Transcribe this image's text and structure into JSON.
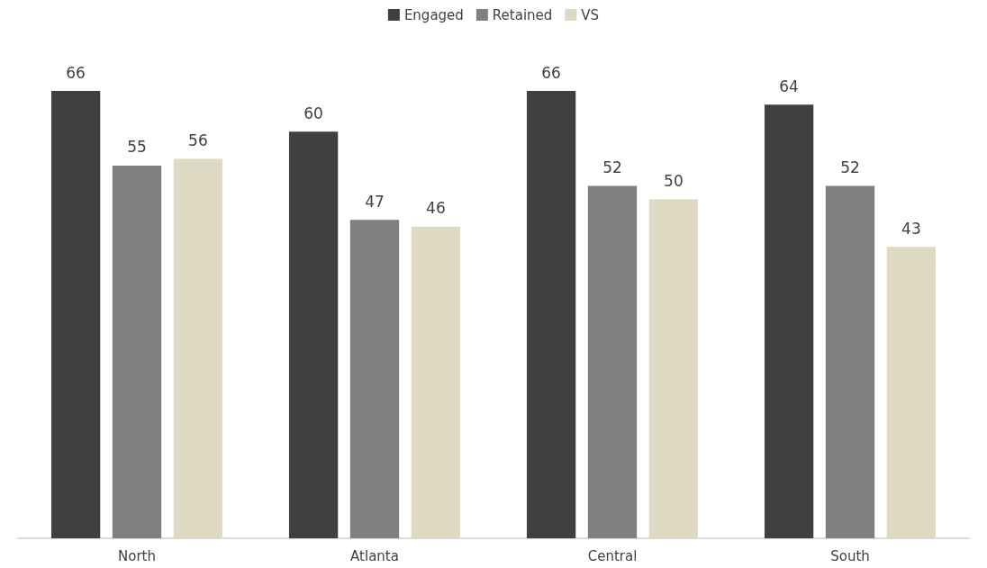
{
  "chart_data": {
    "type": "bar",
    "categories": [
      "North",
      "Atlanta",
      "Central",
      "South"
    ],
    "series": [
      {
        "name": "Engaged",
        "color": "#404040",
        "values": [
          66,
          60,
          66,
          64
        ]
      },
      {
        "name": "Retained",
        "color": "#808080",
        "values": [
          55,
          47,
          52,
          52
        ]
      },
      {
        "name": "VS",
        "color": "#ddd9c3",
        "values": [
          56,
          46,
          50,
          43
        ]
      }
    ],
    "data_labels": true,
    "legend": "top",
    "grid": false
  }
}
